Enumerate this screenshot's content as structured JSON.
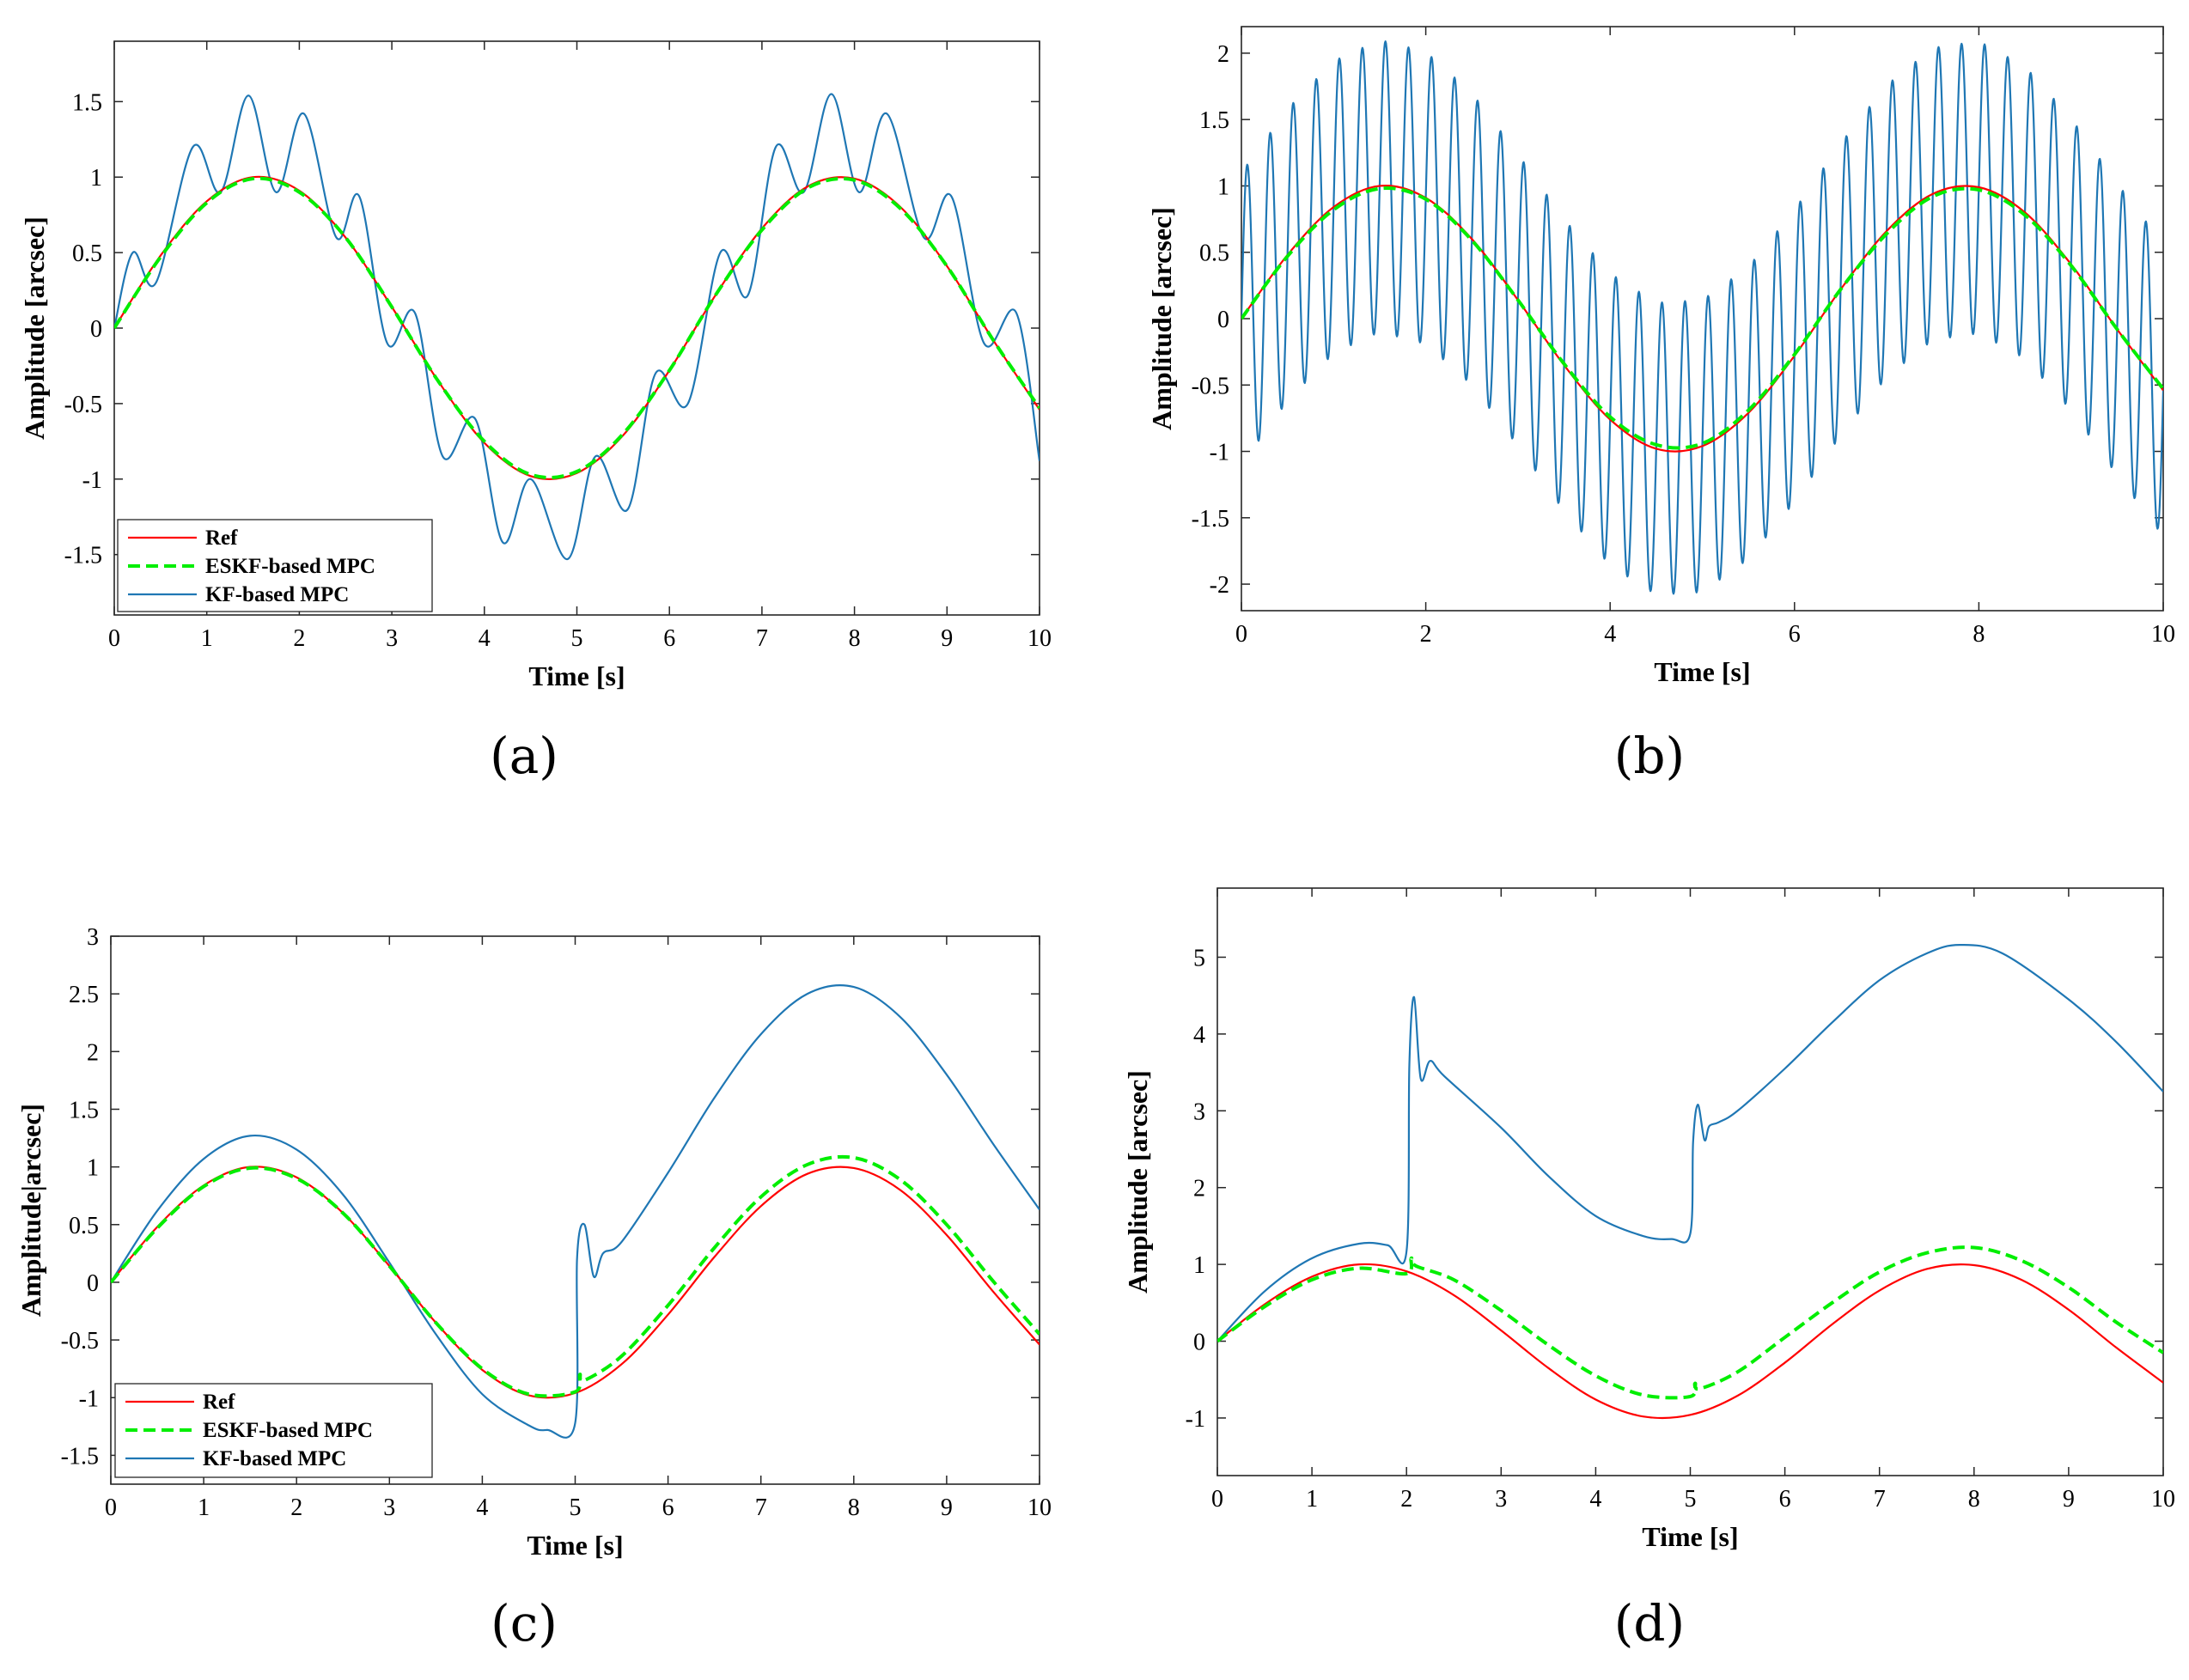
{
  "colors": {
    "ref": "#ff0000",
    "eskf": "#00ee00",
    "kf": "#1f77b4"
  },
  "chart_data": [
    {
      "type": "line",
      "caption": "(a)",
      "xlabel": "Time [s]",
      "ylabel": "Amplitude [arcsec]",
      "xlim": [
        0,
        10
      ],
      "ylim": [
        -1.9,
        1.9
      ],
      "xticks": [
        0,
        1,
        2,
        3,
        4,
        5,
        6,
        7,
        8,
        9,
        10
      ],
      "yticks": [
        -1.5,
        -1,
        -0.5,
        0,
        0.5,
        1,
        1.5
      ],
      "ytick_labels": [
        "-1.5",
        "-1",
        "-0.5",
        "0",
        "0.5",
        "1",
        "1.5"
      ],
      "legend": {
        "placement": "bottom-left",
        "entries": [
          "Ref",
          "ESKF-based MPC",
          "KF-based MPC"
        ]
      },
      "series": [
        {
          "name": "Ref",
          "x": [
            0,
            0.5,
            1,
            1.5,
            2,
            2.5,
            3,
            3.5,
            4,
            4.5,
            5,
            5.5,
            6,
            6.5,
            7,
            7.5,
            8,
            8.5,
            9,
            9.5,
            10
          ],
          "y": [
            0,
            0.48,
            0.84,
            1.0,
            0.91,
            0.6,
            0.14,
            -0.35,
            -0.76,
            -0.98,
            -0.96,
            -0.71,
            -0.28,
            0.22,
            0.66,
            0.94,
            0.99,
            0.8,
            0.41,
            -0.08,
            -0.54
          ]
        },
        {
          "name": "ESKF-based MPC",
          "x": [
            0,
            0.5,
            1,
            1.5,
            2,
            2.5,
            3,
            3.5,
            4,
            4.5,
            5,
            5.5,
            6,
            6.5,
            7,
            7.5,
            8,
            8.5,
            9,
            9.5,
            10
          ],
          "y": [
            0,
            0.47,
            0.83,
            0.99,
            0.9,
            0.6,
            0.14,
            -0.35,
            -0.75,
            -0.97,
            -0.95,
            -0.7,
            -0.28,
            0.22,
            0.65,
            0.93,
            0.98,
            0.79,
            0.41,
            -0.08,
            -0.53
          ]
        },
        {
          "name": "KF-based MPC",
          "x": [
            0,
            0.2,
            0.45,
            0.85,
            1.15,
            1.45,
            1.75,
            2.05,
            2.4,
            2.65,
            2.95,
            3.25,
            3.55,
            3.9,
            4.2,
            4.5,
            4.9,
            5.2,
            5.55,
            5.85,
            6.2,
            6.55,
            6.85,
            7.15,
            7.45,
            7.75,
            8.05,
            8.35,
            8.75,
            9.05,
            9.4,
            9.75,
            10
          ],
          "y": [
            0,
            0.5,
            0.3,
            1.2,
            0.9,
            1.54,
            0.9,
            1.42,
            0.6,
            0.87,
            -0.1,
            0.1,
            -0.85,
            -0.6,
            -1.42,
            -1.0,
            -1.53,
            -0.85,
            -1.2,
            -0.3,
            -0.5,
            0.5,
            0.22,
            1.2,
            0.9,
            1.55,
            0.9,
            1.42,
            0.6,
            0.87,
            -0.1,
            0.1,
            -0.88
          ]
        }
      ]
    },
    {
      "type": "line",
      "caption": "(b)",
      "xlabel": "Time [s]",
      "ylabel": "Amplitude [arcsec]",
      "xlim": [
        0,
        10
      ],
      "ylim": [
        -2.2,
        2.2
      ],
      "xticks": [
        0,
        2,
        4,
        6,
        8,
        10
      ],
      "yticks": [
        -2,
        -1.5,
        -1,
        -0.5,
        0,
        0.5,
        1,
        1.5,
        2
      ],
      "ytick_labels": [
        "-2",
        "-1.5",
        "-1",
        "-0.5",
        "0",
        "0.5",
        "1",
        "1.5",
        "2"
      ],
      "series": [
        {
          "name": "Ref",
          "x": [
            0,
            0.5,
            1,
            1.5,
            2,
            2.5,
            3,
            3.5,
            4,
            4.5,
            5,
            5.5,
            6,
            6.5,
            7,
            7.5,
            8,
            8.5,
            9,
            9.5,
            10
          ],
          "y": [
            0,
            0.48,
            0.84,
            1.0,
            0.91,
            0.6,
            0.14,
            -0.35,
            -0.76,
            -0.98,
            -0.96,
            -0.71,
            -0.28,
            0.22,
            0.66,
            0.94,
            0.99,
            0.8,
            0.41,
            -0.08,
            -0.54
          ]
        },
        {
          "name": "ESKF-based MPC",
          "x": [
            0,
            0.5,
            1,
            1.5,
            2,
            2.5,
            3,
            3.5,
            4,
            4.5,
            5,
            5.5,
            6,
            6.5,
            7,
            7.5,
            8,
            8.5,
            9,
            9.5,
            10
          ],
          "y": [
            0,
            0.47,
            0.82,
            0.98,
            0.9,
            0.59,
            0.14,
            -0.34,
            -0.74,
            -0.95,
            -0.94,
            -0.69,
            -0.27,
            0.22,
            0.64,
            0.92,
            0.97,
            0.78,
            0.4,
            -0.08,
            -0.53
          ]
        },
        {
          "name": "KF-based MPC",
          "oscillation": {
            "cycles_per_s": 4,
            "amplitude": 1.1
          },
          "x": [
            0,
            0.5,
            1,
            1.5,
            2,
            2.5,
            3,
            3.5,
            4,
            4.5,
            5,
            5.5,
            6,
            6.5,
            7,
            7.5,
            8,
            8.5,
            9,
            9.5,
            10
          ],
          "y": [
            0,
            0.48,
            0.84,
            1.0,
            0.91,
            0.6,
            0.14,
            -0.35,
            -0.76,
            -0.98,
            -0.96,
            -0.71,
            -0.28,
            0.22,
            0.66,
            0.94,
            0.99,
            0.8,
            0.41,
            -0.08,
            -0.54
          ]
        }
      ]
    },
    {
      "type": "line",
      "caption": "(c)",
      "xlabel": "Time [s]",
      "ylabel": "Amplitude|arcsec]",
      "xlim": [
        0,
        10
      ],
      "ylim": [
        -1.75,
        3.0
      ],
      "xticks": [
        0,
        1,
        2,
        3,
        4,
        5,
        6,
        7,
        8,
        9,
        10
      ],
      "yticks": [
        -1.5,
        -1,
        -0.5,
        0,
        0.5,
        1,
        1.5,
        2,
        2.5,
        3
      ],
      "ytick_labels": [
        "-1.5",
        "-1",
        "-0.5",
        "0",
        "0.5",
        "1",
        "1.5",
        "2",
        "2.5",
        "3"
      ],
      "legend": {
        "placement": "bottom-left",
        "entries": [
          "Ref",
          "ESKF-based MPC",
          "KF-based MPC"
        ]
      },
      "series": [
        {
          "name": "Ref",
          "x": [
            0,
            0.5,
            1,
            1.5,
            2,
            2.5,
            3,
            3.5,
            4,
            4.5,
            5,
            5.5,
            6,
            6.5,
            7,
            7.5,
            8,
            8.5,
            9,
            9.5,
            10
          ],
          "y": [
            0,
            0.48,
            0.84,
            1.0,
            0.91,
            0.6,
            0.14,
            -0.35,
            -0.76,
            -0.98,
            -0.96,
            -0.71,
            -0.28,
            0.22,
            0.66,
            0.94,
            0.99,
            0.8,
            0.41,
            -0.08,
            -0.54
          ]
        },
        {
          "name": "ESKF-based MPC",
          "x": [
            0,
            0.5,
            1,
            1.5,
            2,
            2.5,
            3,
            3.5,
            4,
            4.5,
            5,
            5.05,
            5.1,
            5.5,
            6,
            6.5,
            7,
            7.5,
            8,
            8.5,
            9,
            9.5,
            10
          ],
          "y": [
            0,
            0.47,
            0.83,
            0.99,
            0.9,
            0.6,
            0.14,
            -0.35,
            -0.75,
            -0.97,
            -0.95,
            -0.8,
            -0.85,
            -0.64,
            -0.2,
            0.3,
            0.74,
            1.02,
            1.08,
            0.89,
            0.5,
            0.01,
            -0.45
          ]
        },
        {
          "name": "KF-based MPC",
          "x": [
            0,
            0.5,
            1,
            1.5,
            2,
            2.5,
            3,
            3.5,
            4,
            4.5,
            4.7,
            5.0,
            5.02,
            5.1,
            5.2,
            5.3,
            5.5,
            6,
            6.5,
            7,
            7.5,
            8,
            8.5,
            9,
            9.5,
            10
          ],
          "y": [
            0,
            0.62,
            1.07,
            1.27,
            1.15,
            0.76,
            0.17,
            -0.45,
            -0.97,
            -1.24,
            -1.28,
            -1.22,
            0.2,
            0.5,
            0.05,
            0.25,
            0.35,
            0.95,
            1.6,
            2.15,
            2.5,
            2.56,
            2.3,
            1.8,
            1.2,
            0.63
          ]
        }
      ]
    },
    {
      "type": "line",
      "caption": "(d)",
      "xlabel": "Time [s]",
      "ylabel": "Amplitude [arcsec]",
      "xlim": [
        0,
        10
      ],
      "ylim": [
        -1.75,
        5.9
      ],
      "xticks": [
        0,
        1,
        2,
        3,
        4,
        5,
        6,
        7,
        8,
        9,
        10
      ],
      "yticks": [
        -1,
        0,
        1,
        2,
        3,
        4,
        5
      ],
      "ytick_labels": [
        "-1",
        "0",
        "1",
        "2",
        "3",
        "4",
        "5"
      ],
      "series": [
        {
          "name": "Ref",
          "x": [
            0,
            0.5,
            1,
            1.5,
            2,
            2.5,
            3,
            3.5,
            4,
            4.5,
            5,
            5.5,
            6,
            6.5,
            7,
            7.5,
            8,
            8.5,
            9,
            9.5,
            10
          ],
          "y": [
            0,
            0.48,
            0.84,
            1.0,
            0.91,
            0.6,
            0.14,
            -0.35,
            -0.76,
            -0.98,
            -0.96,
            -0.71,
            -0.28,
            0.22,
            0.66,
            0.94,
            0.99,
            0.8,
            0.41,
            -0.08,
            -0.54
          ]
        },
        {
          "name": "ESKF-based MPC",
          "x": [
            0,
            0.5,
            1,
            1.5,
            2,
            2.05,
            2.1,
            2.5,
            3,
            3.5,
            4,
            4.5,
            5,
            5.05,
            5.1,
            5.5,
            6,
            6.5,
            7,
            7.5,
            8,
            8.5,
            9,
            9.5,
            10
          ],
          "y": [
            0,
            0.45,
            0.8,
            0.95,
            0.88,
            1.08,
            0.98,
            0.8,
            0.4,
            -0.05,
            -0.45,
            -0.7,
            -0.72,
            -0.55,
            -0.62,
            -0.4,
            0.05,
            0.5,
            0.9,
            1.15,
            1.22,
            1.05,
            0.7,
            0.25,
            -0.15
          ]
        },
        {
          "name": "KF-based MPC",
          "x": [
            0,
            0.5,
            1,
            1.5,
            1.8,
            2.0,
            2.03,
            2.08,
            2.15,
            2.25,
            2.4,
            3,
            3.5,
            4,
            4.5,
            4.8,
            5.0,
            5.03,
            5.08,
            5.15,
            5.2,
            5.3,
            5.5,
            6,
            6.5,
            7,
            7.5,
            7.85,
            8.3,
            9,
            9.5,
            10
          ],
          "y": [
            0,
            0.65,
            1.08,
            1.27,
            1.25,
            1.17,
            3.6,
            4.48,
            3.42,
            3.65,
            3.45,
            2.78,
            2.15,
            1.63,
            1.37,
            1.33,
            1.4,
            2.6,
            3.08,
            2.62,
            2.8,
            2.85,
            3.0,
            3.55,
            4.15,
            4.7,
            5.05,
            5.16,
            5.05,
            4.45,
            3.9,
            3.25
          ]
        }
      ]
    }
  ]
}
